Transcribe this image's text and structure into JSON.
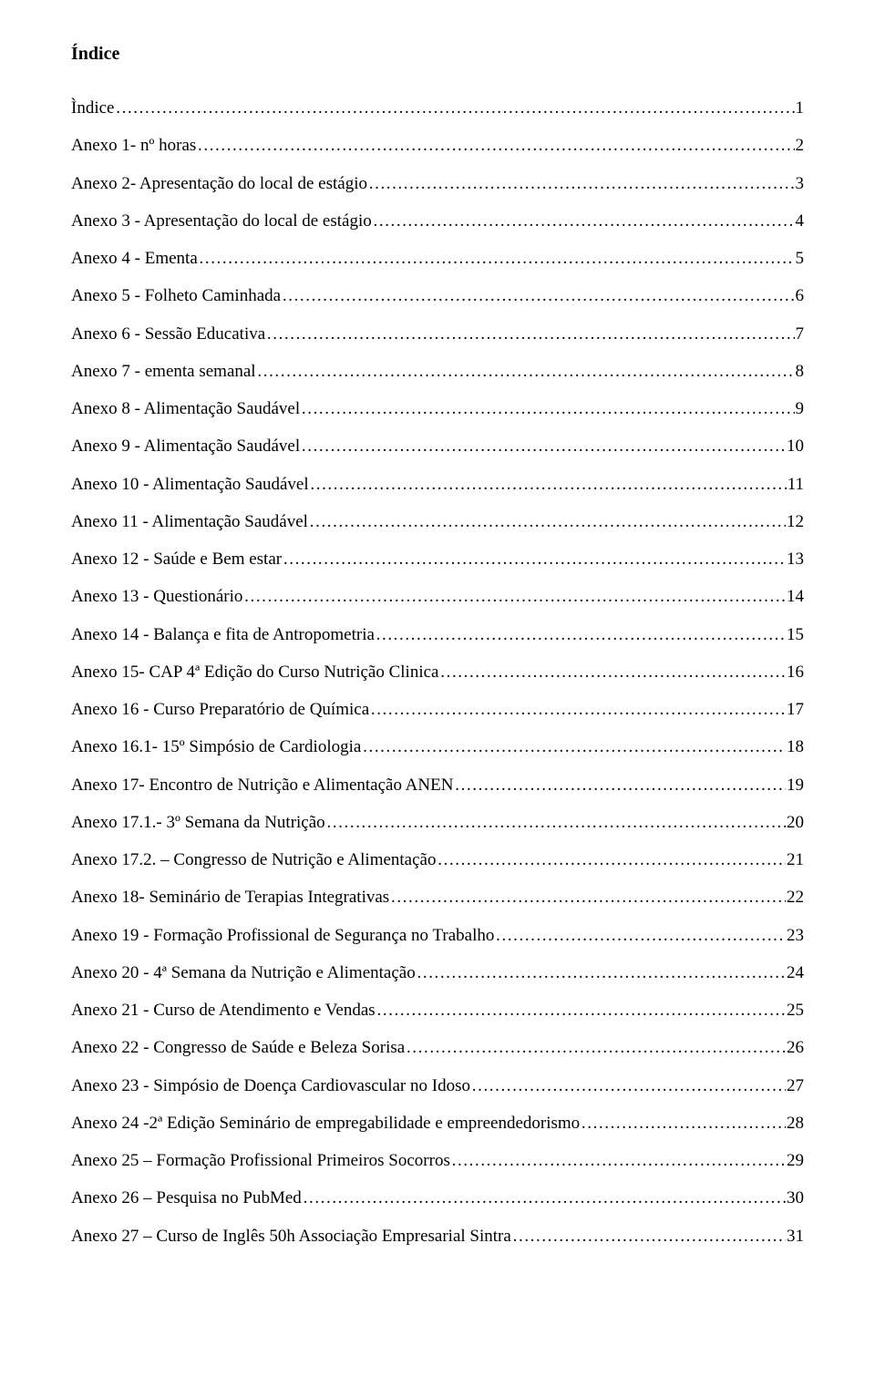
{
  "title": "Índice",
  "entries": [
    {
      "label": "Ìndice",
      "page": "1"
    },
    {
      "label": "Anexo 1- nº horas",
      "page": "2"
    },
    {
      "label": "Anexo 2- Apresentação do local de estágio",
      "page": "3"
    },
    {
      "label": "Anexo 3 - Apresentação do local de estágio",
      "page": "4"
    },
    {
      "label": "Anexo 4 - Ementa",
      "page": "5"
    },
    {
      "label": "Anexo 5 - Folheto Caminhada",
      "page": "6"
    },
    {
      "label": "Anexo 6 - Sessão Educativa",
      "page": "7"
    },
    {
      "label": "Anexo 7 - ementa semanal",
      "page": "8"
    },
    {
      "label": "Anexo 8 - Alimentação Saudável",
      "page": "9"
    },
    {
      "label": "Anexo 9 - Alimentação Saudável",
      "page": "10"
    },
    {
      "label": "Anexo 10 - Alimentação Saudável",
      "page": "11"
    },
    {
      "label": "Anexo 11 - Alimentação Saudável",
      "page": "12"
    },
    {
      "label": "Anexo 12 - Saúde e Bem estar",
      "page": "13"
    },
    {
      "label": "Anexo 13 - Questionário",
      "page": "14"
    },
    {
      "label": "Anexo 14 -  Balança e fita de Antropometria",
      "page": "15"
    },
    {
      "label": "Anexo 15- CAP 4ª Edição do Curso Nutrição Clinica",
      "page": "16"
    },
    {
      "label": "Anexo 16 - Curso Preparatório de Química",
      "page": "17"
    },
    {
      "label": "Anexo 16.1- 15º Simpósio de Cardiologia",
      "page": "18"
    },
    {
      "label": "Anexo 17- Encontro de Nutrição e Alimentação ANEN",
      "page": "19"
    },
    {
      "label": "Anexo 17.1.- 3º Semana da Nutrição",
      "page": "20"
    },
    {
      "label": "Anexo 17.2. – Congresso de Nutrição e Alimentação",
      "page": "21"
    },
    {
      "label": "Anexo 18- Seminário de Terapias Integrativas",
      "page": "22"
    },
    {
      "label": "Anexo 19 - Formação Profissional de Segurança no Trabalho",
      "page": "23"
    },
    {
      "label": "Anexo 20 - 4ª Semana da Nutrição e Alimentação",
      "page": "24"
    },
    {
      "label": "Anexo 21 - Curso de Atendimento e Vendas",
      "page": "25"
    },
    {
      "label": "Anexo 22 - Congresso de Saúde e Beleza Sorisa",
      "page": "26"
    },
    {
      "label": "Anexo 23 - Simpósio de Doença Cardiovascular no Idoso",
      "page": "27"
    },
    {
      "label": "Anexo 24 -2ª Edição Seminário de empregabilidade e empreendedorismo",
      "page": "28"
    },
    {
      "label": "Anexo 25 – Formação Profissional Primeiros Socorros",
      "page": "29"
    },
    {
      "label": "Anexo 26 – Pesquisa no PubMed",
      "page": "30"
    },
    {
      "label": "Anexo 27 – Curso de Inglês 50h Associação Empresarial Sintra",
      "page": "31"
    }
  ]
}
